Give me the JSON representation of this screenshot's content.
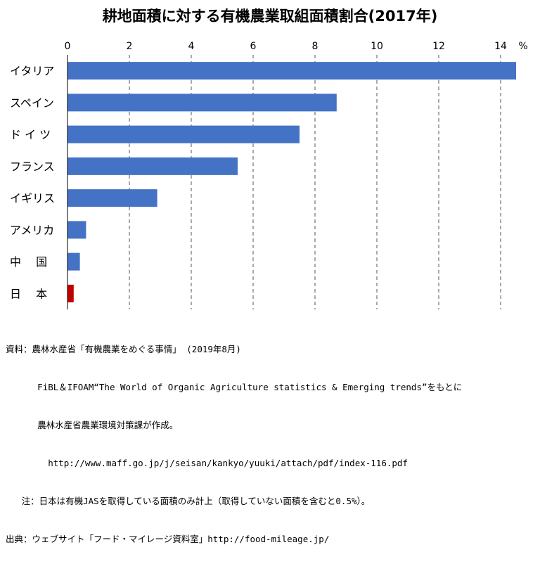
{
  "chart_data": {
    "type": "bar",
    "orientation": "horizontal",
    "title": "耕地面積に対する有機農業取組面積割合(2017年)",
    "unit": "%",
    "categories": [
      "イタリア",
      "スペイン",
      "ド イ ツ",
      "フランス",
      "イギリス",
      "アメリカ",
      "中　 国",
      "日　 本"
    ],
    "values": [
      14.5,
      8.7,
      7.5,
      5.5,
      2.9,
      0.6,
      0.4,
      0.2
    ],
    "colors": [
      "#4472c4",
      "#4472c4",
      "#4472c4",
      "#4472c4",
      "#4472c4",
      "#4472c4",
      "#4472c4",
      "#c00000"
    ],
    "xlim": [
      0,
      15
    ],
    "xticks": [
      0,
      2,
      4,
      6,
      8,
      10,
      12,
      14
    ],
    "grid": "vertical dashed",
    "legend": "none"
  },
  "notes": [
    "資料：農林水産省「有機農業をめぐる事情」 (2019年8月)",
    "      FiBL＆IFOAM“The World of Organic Agriculture statistics & Emerging trends”をもとに",
    "      農林水産省農業環境対策課が作成。",
    "        http://www.maff.go.jp/j/seisan/kankyo/yuuki/attach/pdf/index-116.pdf",
    "   注：日本は有機JASを取得している面積のみ計上（取得していない面積を含むと0.5%）。",
    "出典：ウェブサイト「フード・マイレージ資料室」http://food-mileage.jp/"
  ]
}
